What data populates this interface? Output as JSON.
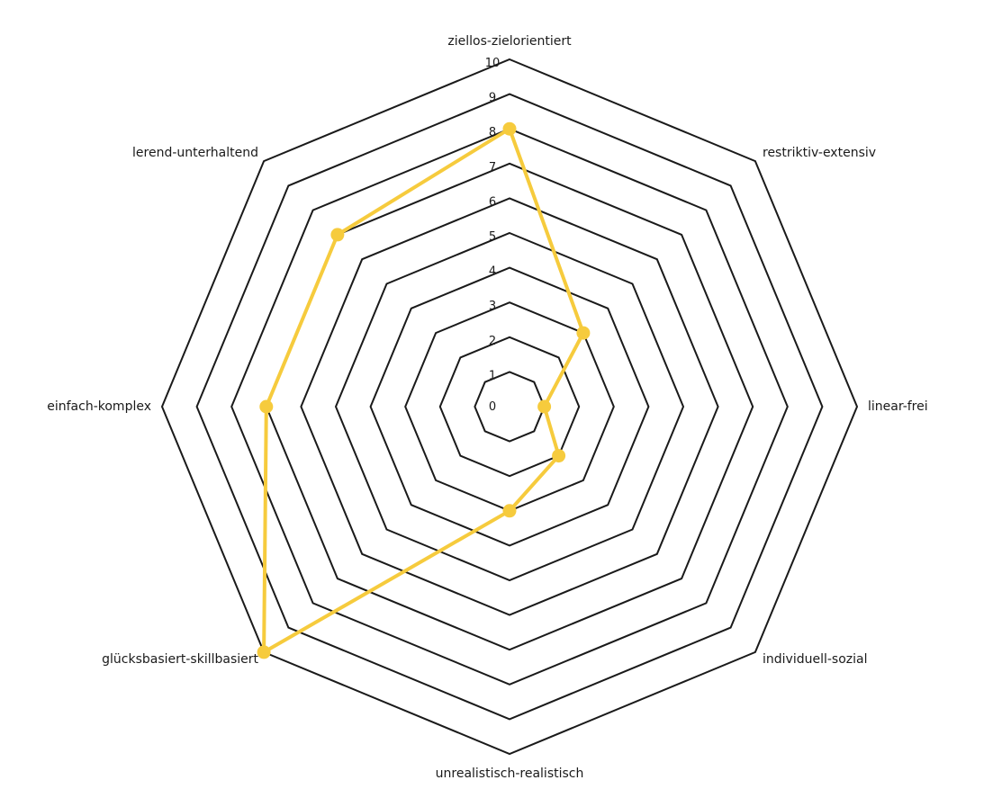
{
  "chart_data": {
    "type": "radar",
    "title": "",
    "categories": [
      "ziellos-zielorientiert",
      "restriktiv-extensiv",
      "linear-frei",
      "individuell-sozial",
      "unrealistisch-realistisch",
      "glücksbasiert-skillbasiert",
      "einfach-komplex",
      "lerend-unterhaltend"
    ],
    "range": [
      0,
      10
    ],
    "ticks": [
      "0",
      "1",
      "2",
      "3",
      "4",
      "5",
      "6",
      "7",
      "8",
      "9",
      "10"
    ],
    "series": [
      {
        "values": [
          8,
          3,
          1,
          2,
          3,
          10,
          7,
          7
        ],
        "color": "#F6CB3D"
      }
    ],
    "grid": true,
    "ring_color": "#1a1a1a"
  }
}
